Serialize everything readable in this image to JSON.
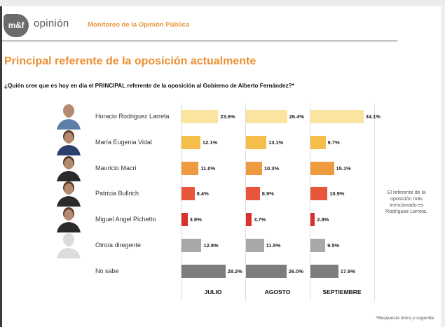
{
  "header": {
    "logo_text": "m&f",
    "brand": "opinión",
    "subtitle": "Monitoreo de la Opinión Pública"
  },
  "title": "Principal referente de la oposición actualmente",
  "question": "¿Quién cree que es hoy en día el PRINCIPAL referente de la oposición al Gobierno de Alberto Fernández?*",
  "note": "El referente de la oposición más mencionado es Rodríguez Larreta.",
  "footnote": "*Respuesta única y sugerida",
  "chart_data": {
    "type": "bar",
    "orientation": "horizontal",
    "title": "Principal referente de la oposición actualmente",
    "categories": [
      "Horacio Rodriguez Larreta",
      "María Eugenia Vidal",
      "Mauricio Macri",
      "Patricia Bullrich",
      "Miguel Angel Pichetto",
      "Otro/a diregente",
      "No sabe"
    ],
    "category_colors": [
      "#fbe3a0",
      "#f5bd4a",
      "#ef9a40",
      "#e8553a",
      "#d9312d",
      "#a8a8a8",
      "#7d7d7d"
    ],
    "avatar_icons": [
      "person-photo-icon",
      "person-photo-icon",
      "person-photo-icon",
      "person-photo-icon",
      "person-photo-icon",
      "person-placeholder-icon",
      ""
    ],
    "series": [
      {
        "name": "JULIO",
        "values": [
          23.6,
          12.1,
          11.0,
          8.4,
          3.9,
          12.8,
          28.2
        ],
        "labels": [
          "23.6%",
          "12.1%",
          "11.0%",
          "8.4%",
          "3.9%",
          "12.8%",
          "28.2%"
        ]
      },
      {
        "name": "AGOSTO",
        "values": [
          26.4,
          13.1,
          10.3,
          8.9,
          3.7,
          11.5,
          26.0
        ],
        "labels": [
          "26.4%",
          "13.1%",
          "10.3%",
          "8.9%",
          "3.7%",
          "11.5%",
          "26.0%"
        ]
      },
      {
        "name": "SEPTIEMBRE",
        "values": [
          34.1,
          9.7,
          15.1,
          10.9,
          2.8,
          9.5,
          17.9
        ],
        "labels": [
          "34.1%",
          "9.7%",
          "15.1%",
          "10.9%",
          "2.8%",
          "9.5%",
          "17.9%"
        ]
      }
    ],
    "unit": "%",
    "grid": false,
    "legend": "none"
  }
}
